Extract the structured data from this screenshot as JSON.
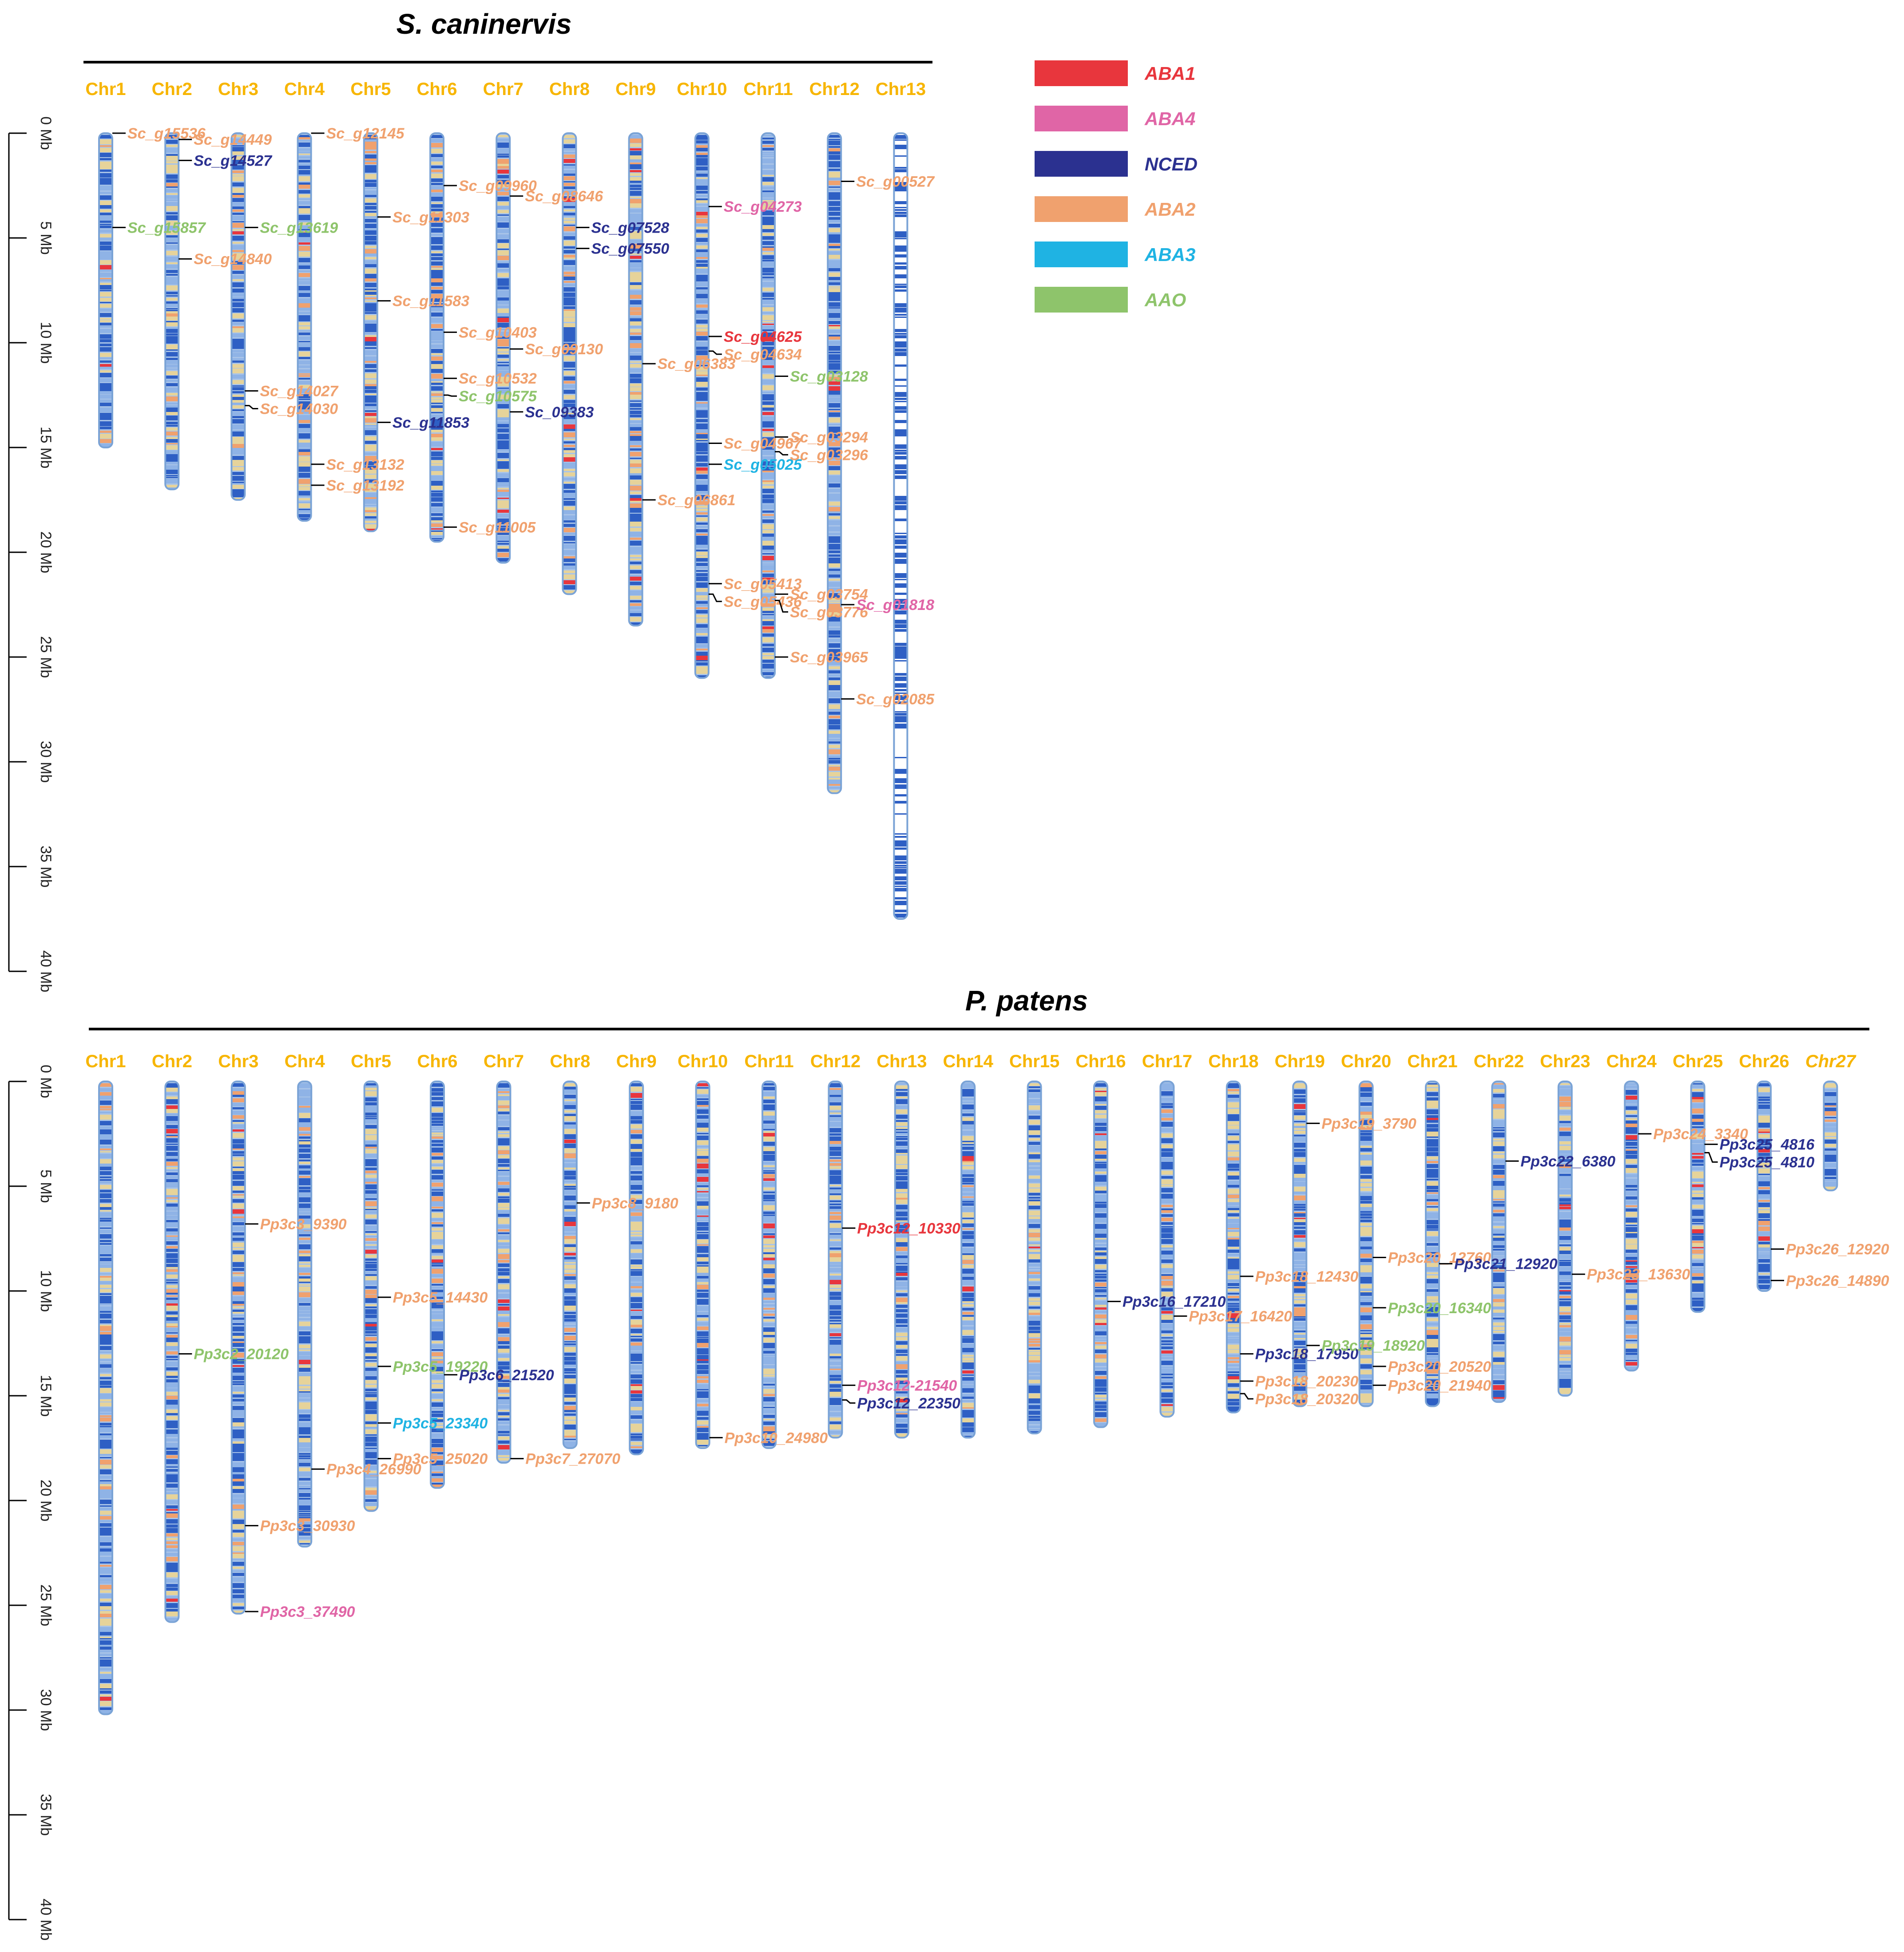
{
  "figure": {
    "colors": {
      "ABA1": "#e8363d",
      "ABA4": "#e065a6",
      "NCED": "#2b3190",
      "ABA2": "#f0a16e",
      "ABA3": "#1fb3e3",
      "AAO": "#8ec46b",
      "chr_label": "#f7b500",
      "chr_outline": "#7aa3d6",
      "band_blue": "#2e5fc4",
      "band_light": "#8fb3e6",
      "band_tan": "#e6d39a",
      "band_orange": "#f0a16e",
      "band_red": "#e8363d"
    },
    "legend": [
      {
        "label": "ABA1",
        "color": "#e8363d"
      },
      {
        "label": "ABA4",
        "color": "#e065a6"
      },
      {
        "label": "NCED",
        "color": "#2b3190"
      },
      {
        "label": "ABA2",
        "color": "#f0a16e"
      },
      {
        "label": "ABA3",
        "color": "#1fb3e3"
      },
      {
        "label": "AAO",
        "color": "#8ec46b"
      }
    ],
    "panels": [
      {
        "id": "sc",
        "title": "S. caninervis",
        "axis_ticks": [
          "0 Mb",
          "5 Mb",
          "10 Mb",
          "15 Mb",
          "20 Mb",
          "25 Mb",
          "30 Mb",
          "35 Mb",
          "40 Mb"
        ],
        "axis_max_mb": 40,
        "chromosomes": [
          {
            "name": "Chr1",
            "length_mb": 15.0
          },
          {
            "name": "Chr2",
            "length_mb": 17.0
          },
          {
            "name": "Chr3",
            "length_mb": 17.5
          },
          {
            "name": "Chr4",
            "length_mb": 18.5
          },
          {
            "name": "Chr5",
            "length_mb": 19.0
          },
          {
            "name": "Chr6",
            "length_mb": 19.5
          },
          {
            "name": "Chr7",
            "length_mb": 20.5
          },
          {
            "name": "Chr8",
            "length_mb": 22.0
          },
          {
            "name": "Chr9",
            "length_mb": 23.5
          },
          {
            "name": "Chr10",
            "length_mb": 26.0
          },
          {
            "name": "Chr11",
            "length_mb": 26.0
          },
          {
            "name": "Chr12",
            "length_mb": 31.5
          },
          {
            "name": "Chr13",
            "length_mb": 37.5,
            "style": "sparse"
          }
        ],
        "genes": [
          {
            "chr": 0,
            "pos_mb": 0.0,
            "label": "Sc_g15536",
            "type": "ABA2"
          },
          {
            "chr": 0,
            "pos_mb": 4.5,
            "label": "Sc_g15857",
            "type": "AAO"
          },
          {
            "chr": 1,
            "pos_mb": 0.3,
            "label": "Sc_g14449",
            "type": "ABA2"
          },
          {
            "chr": 1,
            "pos_mb": 1.3,
            "label": "Sc_g14527",
            "type": "NCED"
          },
          {
            "chr": 1,
            "pos_mb": 6.0,
            "label": "Sc_g14840",
            "type": "ABA2"
          },
          {
            "chr": 2,
            "pos_mb": 4.5,
            "label": "Sc_g13619",
            "type": "AAO"
          },
          {
            "chr": 2,
            "pos_mb": 12.3,
            "label": "Sc_g14027",
            "type": "ABA2"
          },
          {
            "chr": 2,
            "pos_mb": 13.0,
            "label": "Sc_g14030",
            "type": "ABA2"
          },
          {
            "chr": 3,
            "pos_mb": 0.0,
            "label": "Sc_g12145",
            "type": "ABA2"
          },
          {
            "chr": 3,
            "pos_mb": 15.8,
            "label": "Sc_g13132",
            "type": "ABA2"
          },
          {
            "chr": 3,
            "pos_mb": 16.8,
            "label": "Sc_g13192",
            "type": "ABA2"
          },
          {
            "chr": 4,
            "pos_mb": 4.0,
            "label": "Sc_g11303",
            "type": "ABA2"
          },
          {
            "chr": 4,
            "pos_mb": 8.0,
            "label": "Sc_g11583",
            "type": "ABA2"
          },
          {
            "chr": 4,
            "pos_mb": 13.8,
            "label": "Sc_g11853",
            "type": "NCED"
          },
          {
            "chr": 5,
            "pos_mb": 2.5,
            "label": "Sc_g09960",
            "type": "ABA2"
          },
          {
            "chr": 5,
            "pos_mb": 9.5,
            "label": "Sc_g10403",
            "type": "ABA2"
          },
          {
            "chr": 5,
            "pos_mb": 11.7,
            "label": "Sc_g10532",
            "type": "ABA2"
          },
          {
            "chr": 5,
            "pos_mb": 12.5,
            "label": "Sc_g10575",
            "type": "AAO"
          },
          {
            "chr": 5,
            "pos_mb": 18.8,
            "label": "Sc_g11005",
            "type": "ABA2"
          },
          {
            "chr": 6,
            "pos_mb": 3.0,
            "label": "Sc_g08646",
            "type": "ABA2"
          },
          {
            "chr": 6,
            "pos_mb": 10.3,
            "label": "Sc_g09130",
            "type": "ABA2"
          },
          {
            "chr": 6,
            "pos_mb": 13.3,
            "label": "Sc_09383",
            "type": "NCED"
          },
          {
            "chr": 7,
            "pos_mb": 4.5,
            "label": "Sc_g07528",
            "type": "NCED"
          },
          {
            "chr": 7,
            "pos_mb": 5.5,
            "label": "Sc_g07550",
            "type": "NCED"
          },
          {
            "chr": 8,
            "pos_mb": 11.0,
            "label": "Sc_g06383",
            "type": "ABA2"
          },
          {
            "chr": 8,
            "pos_mb": 17.5,
            "label": "Sc_g06861",
            "type": "ABA2"
          },
          {
            "chr": 9,
            "pos_mb": 3.5,
            "label": "Sc_g04273",
            "type": "ABA4"
          },
          {
            "chr": 9,
            "pos_mb": 9.7,
            "label": "Sc_g04625",
            "type": "ABA1"
          },
          {
            "chr": 9,
            "pos_mb": 10.4,
            "label": "Sc_g04634",
            "type": "ABA2"
          },
          {
            "chr": 9,
            "pos_mb": 14.8,
            "label": "Sc_g04967",
            "type": "ABA2"
          },
          {
            "chr": 9,
            "pos_mb": 15.8,
            "label": "Sc_g05025",
            "type": "ABA3"
          },
          {
            "chr": 9,
            "pos_mb": 21.5,
            "label": "Sc_g05413",
            "type": "ABA2"
          },
          {
            "chr": 9,
            "pos_mb": 22.0,
            "label": "Sc_g05436",
            "type": "ABA2"
          },
          {
            "chr": 10,
            "pos_mb": 11.6,
            "label": "Sc_g03128",
            "type": "AAO"
          },
          {
            "chr": 10,
            "pos_mb": 14.5,
            "label": "Sc_g03294",
            "type": "ABA2"
          },
          {
            "chr": 10,
            "pos_mb": 15.2,
            "label": "Sc_g03296",
            "type": "ABA2"
          },
          {
            "chr": 10,
            "pos_mb": 22.0,
            "label": "Sc_g03754",
            "type": "ABA2"
          },
          {
            "chr": 10,
            "pos_mb": 22.3,
            "label": "Sc_g03776",
            "type": "ABA2"
          },
          {
            "chr": 10,
            "pos_mb": 25.0,
            "label": "Sc_g03965",
            "type": "ABA2"
          },
          {
            "chr": 11,
            "pos_mb": 2.3,
            "label": "Sc_g00527",
            "type": "ABA2"
          },
          {
            "chr": 11,
            "pos_mb": 22.5,
            "label": "Sc_g01818",
            "type": "ABA4"
          },
          {
            "chr": 11,
            "pos_mb": 27.0,
            "label": "Sc_g02085",
            "type": "ABA2"
          }
        ]
      },
      {
        "id": "pp",
        "title": "P. patens",
        "axis_ticks": [
          "0 Mb",
          "5 Mb",
          "10 Mb",
          "15 Mb",
          "20 Mb",
          "25 Mb",
          "30 Mb",
          "35 Mb",
          "40 Mb"
        ],
        "axis_max_mb": 40,
        "chromosomes": [
          {
            "name": "Chr1",
            "length_mb": 30.2
          },
          {
            "name": "Chr2",
            "length_mb": 25.8
          },
          {
            "name": "Chr3",
            "length_mb": 25.4
          },
          {
            "name": "Chr4",
            "length_mb": 22.2
          },
          {
            "name": "Chr5",
            "length_mb": 20.5
          },
          {
            "name": "Chr6",
            "length_mb": 19.4
          },
          {
            "name": "Chr7",
            "length_mb": 18.2
          },
          {
            "name": "Chr8",
            "length_mb": 17.5
          },
          {
            "name": "Chr9",
            "length_mb": 17.8
          },
          {
            "name": "Chr10",
            "length_mb": 17.5
          },
          {
            "name": "Chr11",
            "length_mb": 17.5
          },
          {
            "name": "Chr12",
            "length_mb": 17.0
          },
          {
            "name": "Chr13",
            "length_mb": 17.0
          },
          {
            "name": "Chr14",
            "length_mb": 17.0
          },
          {
            "name": "Chr15",
            "length_mb": 16.8
          },
          {
            "name": "Chr16",
            "length_mb": 16.5
          },
          {
            "name": "Chr17",
            "length_mb": 16.0
          },
          {
            "name": "Chr18",
            "length_mb": 15.8
          },
          {
            "name": "Chr19",
            "length_mb": 15.5
          },
          {
            "name": "Chr20",
            "length_mb": 15.5
          },
          {
            "name": "Chr21",
            "length_mb": 15.5
          },
          {
            "name": "Chr22",
            "length_mb": 15.3
          },
          {
            "name": "Chr23",
            "length_mb": 15.0
          },
          {
            "name": "Chr24",
            "length_mb": 13.8
          },
          {
            "name": "Chr25",
            "length_mb": 11.0
          },
          {
            "name": "Chr26",
            "length_mb": 10.0
          },
          {
            "name": "Chr27",
            "length_mb": 5.2,
            "italic": true
          }
        ],
        "genes": [
          {
            "chr": 1,
            "pos_mb": 13.0,
            "label": "Pp3c2_20120",
            "type": "AAO"
          },
          {
            "chr": 2,
            "pos_mb": 6.8,
            "label": "Pp3c3_9390",
            "type": "ABA2"
          },
          {
            "chr": 2,
            "pos_mb": 21.2,
            "label": "Pp3c3_30930",
            "type": "ABA2"
          },
          {
            "chr": 2,
            "pos_mb": 25.3,
            "label": "Pp3c3_37490",
            "type": "ABA4"
          },
          {
            "chr": 3,
            "pos_mb": 18.5,
            "label": "Pp3c4_26990",
            "type": "ABA2"
          },
          {
            "chr": 4,
            "pos_mb": 10.3,
            "label": "Pp3c5_14430",
            "type": "ABA2"
          },
          {
            "chr": 4,
            "pos_mb": 13.6,
            "label": "Pp3c5_19220",
            "type": "AAO"
          },
          {
            "chr": 4,
            "pos_mb": 16.3,
            "label": "Pp3c5_23340",
            "type": "ABA3"
          },
          {
            "chr": 4,
            "pos_mb": 18.0,
            "label": "Pp3c5_25020",
            "type": "ABA2"
          },
          {
            "chr": 5,
            "pos_mb": 14.0,
            "label": "Pp3c6_21520",
            "type": "NCED"
          },
          {
            "chr": 6,
            "pos_mb": 18.0,
            "label": "Pp3c7_27070",
            "type": "ABA2"
          },
          {
            "chr": 7,
            "pos_mb": 5.8,
            "label": "Pp3c8_9180",
            "type": "ABA2"
          },
          {
            "chr": 9,
            "pos_mb": 17.0,
            "label": "Pp3c10_24980",
            "type": "ABA2"
          },
          {
            "chr": 11,
            "pos_mb": 7.0,
            "label": "Pp3c12_10330",
            "type": "ABA1"
          },
          {
            "chr": 11,
            "pos_mb": 14.5,
            "label": "Pp3c12-21540",
            "type": "ABA4"
          },
          {
            "chr": 11,
            "pos_mb": 15.2,
            "label": "Pp3c12_22350",
            "type": "NCED"
          },
          {
            "chr": 15,
            "pos_mb": 10.5,
            "label": "Pp3c16_17210",
            "type": "NCED"
          },
          {
            "chr": 16,
            "pos_mb": 11.2,
            "label": "Pp3c17_16420",
            "type": "ABA2"
          },
          {
            "chr": 17,
            "pos_mb": 9.3,
            "label": "Pp3c18_12430",
            "type": "ABA2"
          },
          {
            "chr": 17,
            "pos_mb": 13.0,
            "label": "Pp3c18_17950",
            "type": "NCED"
          },
          {
            "chr": 17,
            "pos_mb": 14.3,
            "label": "Pp3c18_20230",
            "type": "ABA2"
          },
          {
            "chr": 17,
            "pos_mb": 14.9,
            "label": "Pp3c18_20320",
            "type": "ABA2"
          },
          {
            "chr": 18,
            "pos_mb": 2.0,
            "label": "Pp3c19_3790",
            "type": "ABA2"
          },
          {
            "chr": 18,
            "pos_mb": 12.6,
            "label": "Pp3c19_18920",
            "type": "AAO"
          },
          {
            "chr": 19,
            "pos_mb": 8.4,
            "label": "Pp3c20_12760",
            "type": "ABA2"
          },
          {
            "chr": 19,
            "pos_mb": 10.8,
            "label": "Pp3c20_16340",
            "type": "AAO"
          },
          {
            "chr": 19,
            "pos_mb": 13.6,
            "label": "Pp3c20_20520",
            "type": "ABA2"
          },
          {
            "chr": 19,
            "pos_mb": 14.5,
            "label": "Pp3c20_21940",
            "type": "ABA2"
          },
          {
            "chr": 20,
            "pos_mb": 8.7,
            "label": "Pp3c21_12920",
            "type": "NCED"
          },
          {
            "chr": 21,
            "pos_mb": 3.8,
            "label": "Pp3c22_6380",
            "type": "NCED"
          },
          {
            "chr": 22,
            "pos_mb": 9.2,
            "label": "Pp3c23_13630",
            "type": "ABA2"
          },
          {
            "chr": 23,
            "pos_mb": 2.5,
            "label": "Pp3c24_3340",
            "type": "ABA2"
          },
          {
            "chr": 24,
            "pos_mb": 3.0,
            "label": "Pp3c25_4816",
            "type": "NCED"
          },
          {
            "chr": 24,
            "pos_mb": 3.4,
            "label": "Pp3c25_4810",
            "type": "NCED"
          },
          {
            "chr": 25,
            "pos_mb": 8.0,
            "label": "Pp3c26_12920",
            "type": "ABA2"
          },
          {
            "chr": 25,
            "pos_mb": 9.5,
            "label": "Pp3c26_14890",
            "type": "ABA2"
          }
        ]
      }
    ]
  }
}
